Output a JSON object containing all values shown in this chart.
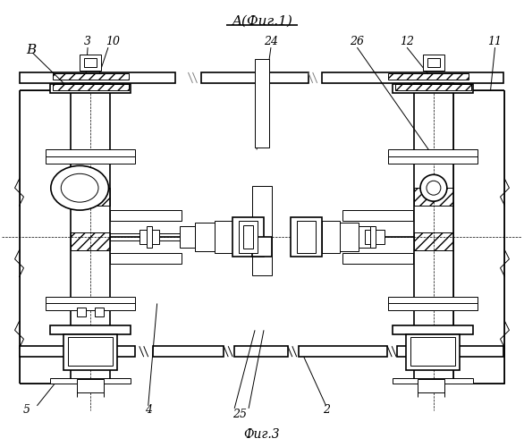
{
  "bg_color": "#ffffff",
  "line_color": "#000000",
  "title": "A(Фиг.1)",
  "fig_label": "Фиг.3",
  "lw_main": 1.2,
  "lw_thin": 0.7,
  "lw_dash": 0.5
}
